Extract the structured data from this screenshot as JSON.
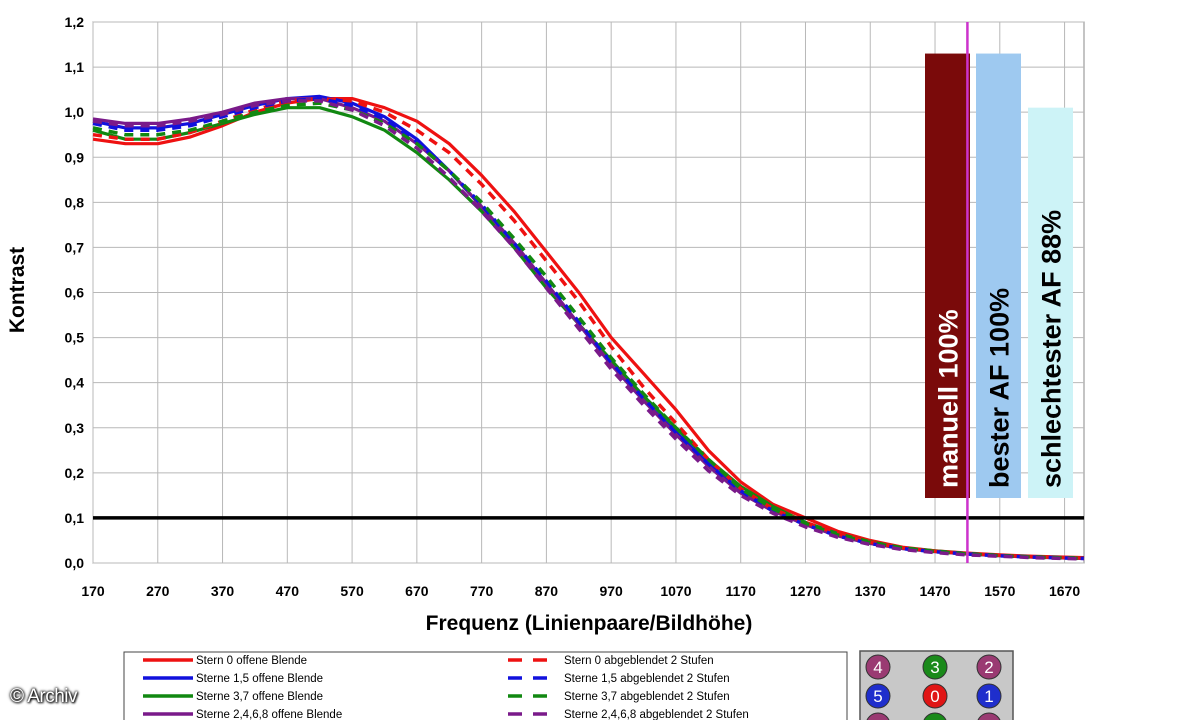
{
  "chart_data": {
    "type": "line",
    "title": "",
    "xlabel": "Frequenz (Linienpaare/Bildhöhe)",
    "ylabel": "Kontrast",
    "xlim": [
      170,
      1700
    ],
    "ylim": [
      0,
      1.2
    ],
    "xticks": [
      170,
      270,
      370,
      470,
      570,
      670,
      770,
      870,
      970,
      1070,
      1170,
      1270,
      1370,
      1470,
      1570,
      1670
    ],
    "xtick_labels": [
      "170",
      "270",
      "370",
      "470",
      "570",
      "670",
      "770",
      "870",
      "970",
      "1070",
      "1170",
      "1270",
      "1370",
      "1470",
      "1570",
      "1670"
    ],
    "yticks": [
      0,
      0.1,
      0.2,
      0.3,
      0.4,
      0.5,
      0.6,
      0.7,
      0.8,
      0.9,
      1.0,
      1.1,
      1.2
    ],
    "ytick_labels": [
      "0,0",
      "0,1",
      "0,2",
      "0,3",
      "0,4",
      "0,5",
      "0,6",
      "0,7",
      "0,8",
      "0,9",
      "1,0",
      "1,1",
      "1,2"
    ],
    "grid": true,
    "threshold_line": {
      "y": 0.1,
      "color": "#000000"
    },
    "marker_line": {
      "x": 1520,
      "color": "#cc33cc"
    },
    "x": [
      170,
      220,
      270,
      320,
      370,
      420,
      470,
      520,
      570,
      620,
      670,
      720,
      770,
      820,
      870,
      920,
      970,
      1020,
      1070,
      1120,
      1170,
      1220,
      1270,
      1320,
      1370,
      1420,
      1470,
      1520,
      1570,
      1620,
      1670,
      1700
    ],
    "series": [
      {
        "name": "Stern 0 offene Blende",
        "color": "#ee1111",
        "dash": false,
        "values": [
          0.94,
          0.93,
          0.93,
          0.945,
          0.97,
          1.0,
          1.02,
          1.03,
          1.03,
          1.01,
          0.98,
          0.93,
          0.86,
          0.78,
          0.69,
          0.6,
          0.5,
          0.42,
          0.34,
          0.25,
          0.18,
          0.13,
          0.1,
          0.07,
          0.05,
          0.035,
          0.027,
          0.022,
          0.018,
          0.015,
          0.013,
          0.012
        ]
      },
      {
        "name": "Sterne 1,5 offene Blende",
        "color": "#1111dd",
        "dash": false,
        "values": [
          0.98,
          0.965,
          0.965,
          0.975,
          0.995,
          1.015,
          1.03,
          1.035,
          1.02,
          0.99,
          0.94,
          0.87,
          0.79,
          0.71,
          0.62,
          0.53,
          0.44,
          0.36,
          0.29,
          0.22,
          0.16,
          0.12,
          0.09,
          0.065,
          0.045,
          0.033,
          0.026,
          0.021,
          0.017,
          0.014,
          0.012,
          0.011
        ]
      },
      {
        "name": "Sterne 3,7 offene Blende",
        "color": "#118811",
        "dash": false,
        "values": [
          0.96,
          0.94,
          0.94,
          0.955,
          0.975,
          0.995,
          1.01,
          1.01,
          0.99,
          0.96,
          0.91,
          0.85,
          0.78,
          0.7,
          0.61,
          0.53,
          0.45,
          0.37,
          0.3,
          0.23,
          0.17,
          0.125,
          0.09,
          0.065,
          0.047,
          0.034,
          0.027,
          0.021,
          0.017,
          0.014,
          0.012,
          0.011
        ]
      },
      {
        "name": "Sterne 2,4,6,8 offene Blende",
        "color": "#7a1a8a",
        "dash": false,
        "values": [
          0.985,
          0.975,
          0.975,
          0.985,
          1.0,
          1.02,
          1.03,
          1.03,
          1.01,
          0.98,
          0.93,
          0.87,
          0.79,
          0.71,
          0.62,
          0.53,
          0.44,
          0.36,
          0.285,
          0.215,
          0.155,
          0.115,
          0.085,
          0.06,
          0.043,
          0.032,
          0.025,
          0.02,
          0.016,
          0.013,
          0.011,
          0.01
        ]
      },
      {
        "name": "Stern 0 abgeblendet 2 Stufen",
        "color": "#ee1111",
        "dash": true,
        "values": [
          0.95,
          0.94,
          0.94,
          0.955,
          0.98,
          1.005,
          1.025,
          1.03,
          1.025,
          1.0,
          0.96,
          0.91,
          0.84,
          0.76,
          0.67,
          0.58,
          0.48,
          0.39,
          0.31,
          0.23,
          0.165,
          0.12,
          0.09,
          0.065,
          0.046,
          0.034,
          0.026,
          0.021,
          0.017,
          0.014,
          0.012,
          0.011
        ]
      },
      {
        "name": "Sterne 1,5 abgeblendet 2 Stufen",
        "color": "#1111dd",
        "dash": true,
        "values": [
          0.975,
          0.96,
          0.96,
          0.97,
          0.99,
          1.01,
          1.025,
          1.03,
          1.015,
          0.985,
          0.935,
          0.87,
          0.795,
          0.71,
          0.625,
          0.535,
          0.445,
          0.365,
          0.29,
          0.22,
          0.16,
          0.115,
          0.085,
          0.06,
          0.043,
          0.032,
          0.025,
          0.02,
          0.016,
          0.013,
          0.011,
          0.01
        ]
      },
      {
        "name": "Sterne 3,7 abgeblendet 2 Stufen",
        "color": "#118811",
        "dash": true,
        "values": [
          0.965,
          0.95,
          0.95,
          0.96,
          0.98,
          1.0,
          1.015,
          1.02,
          1.005,
          0.975,
          0.93,
          0.87,
          0.8,
          0.72,
          0.635,
          0.545,
          0.455,
          0.375,
          0.3,
          0.23,
          0.165,
          0.12,
          0.088,
          0.062,
          0.045,
          0.033,
          0.025,
          0.02,
          0.016,
          0.013,
          0.011,
          0.01
        ]
      },
      {
        "name": "Sterne 2,4,6,8 abgeblendet 2 Stufen",
        "color": "#7a1a8a",
        "dash": true,
        "values": [
          0.98,
          0.97,
          0.97,
          0.98,
          0.995,
          1.015,
          1.025,
          1.025,
          1.005,
          0.97,
          0.92,
          0.855,
          0.78,
          0.7,
          0.61,
          0.52,
          0.43,
          0.35,
          0.275,
          0.205,
          0.15,
          0.11,
          0.08,
          0.057,
          0.041,
          0.03,
          0.023,
          0.018,
          0.015,
          0.012,
          0.01,
          0.009
        ]
      }
    ],
    "bars": [
      {
        "label": "manuell 100%",
        "value": 1.13,
        "color": "#7a0a0a",
        "text_color": "#ffffff"
      },
      {
        "label": "bester AF 100%",
        "value": 1.13,
        "color": "#9ec9f0",
        "text_color": "#000000"
      },
      {
        "label": "schlechtester AF 88%",
        "value": 1.01,
        "color": "#cdf3f7",
        "text_color": "#000000"
      }
    ],
    "star_indicator": [
      {
        "label": "4",
        "color": "#9a3a72"
      },
      {
        "label": "3",
        "color": "#1a8a1a"
      },
      {
        "label": "2",
        "color": "#9a3a72"
      },
      {
        "label": "5",
        "color": "#1f2ecc"
      },
      {
        "label": "0",
        "color": "#e01515"
      },
      {
        "label": "1",
        "color": "#1f2ecc"
      },
      {
        "label": "",
        "color": "#9a3a72"
      },
      {
        "label": "",
        "color": "#1a8a1a"
      },
      {
        "label": "",
        "color": "#9a3a72"
      }
    ]
  },
  "credit": "© Archiv"
}
